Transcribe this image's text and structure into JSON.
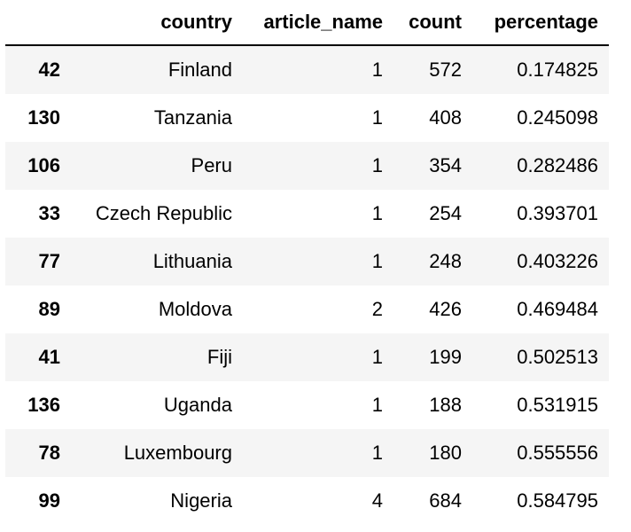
{
  "table": {
    "headers": {
      "index": "",
      "country": "country",
      "article_name": "article_name",
      "count": "count",
      "percentage": "percentage"
    },
    "rows": [
      {
        "index": "42",
        "country": "Finland",
        "article_name": "1",
        "count": "572",
        "percentage": "0.174825"
      },
      {
        "index": "130",
        "country": "Tanzania",
        "article_name": "1",
        "count": "408",
        "percentage": "0.245098"
      },
      {
        "index": "106",
        "country": "Peru",
        "article_name": "1",
        "count": "354",
        "percentage": "0.282486"
      },
      {
        "index": "33",
        "country": "Czech Republic",
        "article_name": "1",
        "count": "254",
        "percentage": "0.393701"
      },
      {
        "index": "77",
        "country": "Lithuania",
        "article_name": "1",
        "count": "248",
        "percentage": "0.403226"
      },
      {
        "index": "89",
        "country": "Moldova",
        "article_name": "2",
        "count": "426",
        "percentage": "0.469484"
      },
      {
        "index": "41",
        "country": "Fiji",
        "article_name": "1",
        "count": "199",
        "percentage": "0.502513"
      },
      {
        "index": "136",
        "country": "Uganda",
        "article_name": "1",
        "count": "188",
        "percentage": "0.531915"
      },
      {
        "index": "78",
        "country": "Luxembourg",
        "article_name": "1",
        "count": "180",
        "percentage": "0.555556"
      },
      {
        "index": "99",
        "country": "Nigeria",
        "article_name": "4",
        "count": "684",
        "percentage": "0.584795"
      }
    ]
  }
}
